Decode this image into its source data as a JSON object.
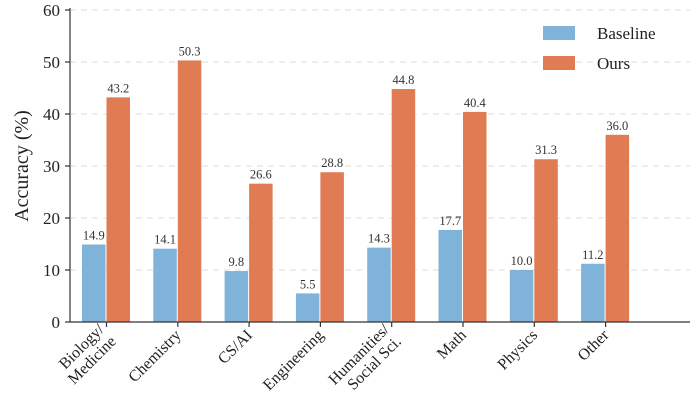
{
  "chart_data": {
    "type": "bar",
    "categories": [
      "Biology/\nMedicine",
      "Chemistry",
      "CS/AI",
      "Engineering",
      "Humanities/\nSocial Sci.",
      "Math",
      "Physics",
      "Other"
    ],
    "series": [
      {
        "name": "Baseline",
        "color": "#7fb3d9",
        "values": [
          14.9,
          14.1,
          9.8,
          5.5,
          14.3,
          17.7,
          10.0,
          11.2
        ],
        "labels": [
          "14.9",
          "14.1",
          "9.8",
          "5.5",
          "14.3",
          "17.7",
          "10.0",
          "11.2"
        ]
      },
      {
        "name": "Ours",
        "color": "#e07b54",
        "values": [
          43.2,
          50.3,
          26.6,
          28.8,
          44.8,
          40.4,
          31.3,
          36.0
        ],
        "labels": [
          "43.2",
          "50.3",
          "26.6",
          "28.8",
          "44.8",
          "40.4",
          "31.3",
          "36.0"
        ]
      }
    ],
    "title": "",
    "xlabel": "",
    "ylabel": "Accuracy (%)",
    "ylim": [
      0,
      60
    ],
    "yticks": [
      "0",
      "10",
      "20",
      "30",
      "40",
      "50",
      "60"
    ],
    "grid": true,
    "legend_position": "top-right"
  }
}
